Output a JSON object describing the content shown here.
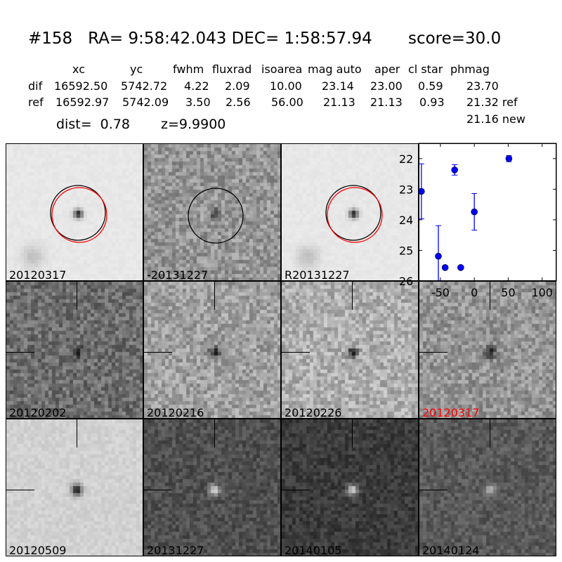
{
  "title": "#158   RA= 9:58:42.043 DEC= 1:58:57.94       score=30.0",
  "table": {
    "headers": [
      "xc",
      "yc",
      "fwhm",
      "fluxrad",
      "isoarea",
      "mag auto",
      "aper",
      "cl star",
      "phmag"
    ],
    "rows": [
      {
        "label": "dif",
        "values": [
          "16592.50",
          "5742.72",
          "4.22",
          "2.09",
          "10.00",
          "23.14",
          "23.00",
          "0.59",
          "23.70"
        ]
      },
      {
        "label": "ref",
        "values": [
          "16592.97",
          "5742.09",
          "3.50",
          "2.56",
          "56.00",
          "21.13",
          "21.13",
          "0.93",
          "21.32 ref"
        ]
      }
    ],
    "extra_phmag": "21.16 new",
    "dist": "dist=  0.78",
    "z": "z=9.9900"
  },
  "top_panels": [
    {
      "label": "20120317",
      "circles": [
        "black",
        "red"
      ]
    },
    {
      "label": "-20131227",
      "circles": [
        "black"
      ]
    },
    {
      "label": "R20131227",
      "circles": [
        "black",
        "red"
      ]
    }
  ],
  "stamps": [
    {
      "label": "20120202",
      "color": "#000000"
    },
    {
      "label": "20120216",
      "color": "#000000"
    },
    {
      "label": "20120226",
      "color": "#000000"
    },
    {
      "label": "20120317",
      "color": "#ff0000"
    },
    {
      "label": "20120509",
      "color": "#000000"
    },
    {
      "label": "20131227",
      "color": "#000000"
    },
    {
      "label": "20140105",
      "color": "#000000"
    },
    {
      "label": "20140124",
      "color": "#000000"
    }
  ],
  "chart_data": {
    "type": "scatter",
    "title": "",
    "xlabel": "",
    "ylabel": "",
    "xlim": [
      -82,
      121
    ],
    "ylim": [
      26,
      21.5
    ],
    "y_inverted": true,
    "xticks": [
      "-50",
      "0",
      "50",
      "100"
    ],
    "yticks": [
      "22",
      "23",
      "24",
      "25",
      "26"
    ],
    "marker_color": "#0000ff",
    "points": [
      {
        "x": -78,
        "y": 23.07,
        "err": 0.9
      },
      {
        "x": -53,
        "y": 25.19,
        "err": 1.0
      },
      {
        "x": -43,
        "y": 25.56,
        "err": 0.05
      },
      {
        "x": -29,
        "y": 22.37,
        "err": 0.17
      },
      {
        "x": -20,
        "y": 25.56,
        "err": 0.05
      },
      {
        "x": 0,
        "y": 23.74,
        "err": 0.6
      },
      {
        "x": 51,
        "y": 22.0,
        "err": 0.1
      }
    ]
  }
}
